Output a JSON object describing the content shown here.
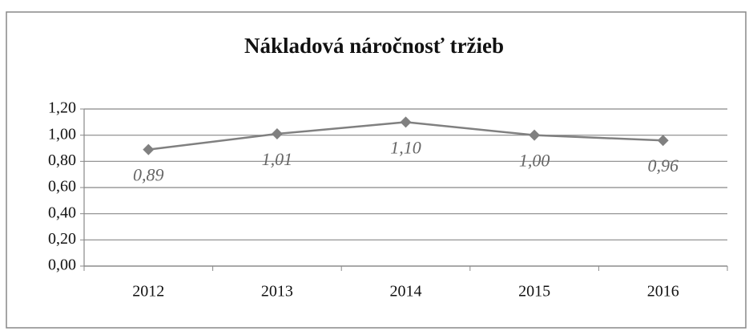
{
  "chart_data": {
    "type": "line",
    "title": "Nákladová náročnosť tržieb",
    "categories": [
      "2012",
      "2013",
      "2014",
      "2015",
      "2016"
    ],
    "values": [
      0.89,
      1.01,
      1.1,
      1.0,
      0.96
    ],
    "value_labels": [
      "0,89",
      "1,01",
      "1,10",
      "1,00",
      "0,96"
    ],
    "color": "#808080",
    "ylim": [
      0,
      1.2
    ],
    "yticks": [
      {
        "value": 0,
        "label": "0,00"
      },
      {
        "value": 0.2,
        "label": "0,20"
      },
      {
        "value": 0.4,
        "label": "0,40"
      },
      {
        "value": 0.6,
        "label": "0,60"
      },
      {
        "value": 0.8,
        "label": "0,80"
      },
      {
        "value": 1.0,
        "label": "1,00"
      },
      {
        "value": 1.2,
        "label": "1,20"
      }
    ],
    "grid": true
  }
}
